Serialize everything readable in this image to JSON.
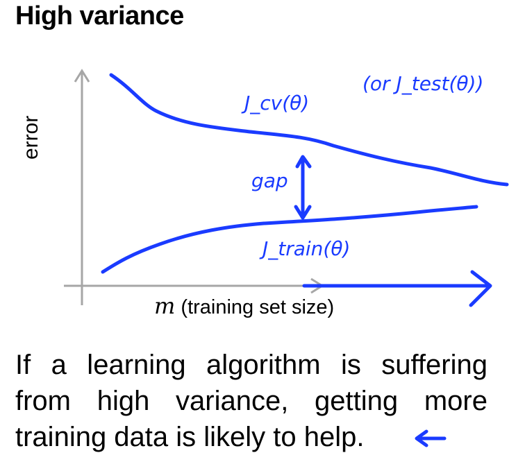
{
  "title": "High variance",
  "axes": {
    "ylabel": "error",
    "xlabel_var": "m",
    "xlabel_text": "(training set size)"
  },
  "curves": {
    "cv_label": "J_cv(θ)",
    "test_label": "(or J_test(θ))",
    "train_label": "J_train(θ)",
    "gap_label": "gap"
  },
  "caption": {
    "line1": "If a learning algorithm is suffering",
    "line2": "from high variance, getting more",
    "line3": "training data is likely to help."
  },
  "colors": {
    "ink": "#1a3bff",
    "axis": "#a6a6a6",
    "text": "#000000"
  }
}
